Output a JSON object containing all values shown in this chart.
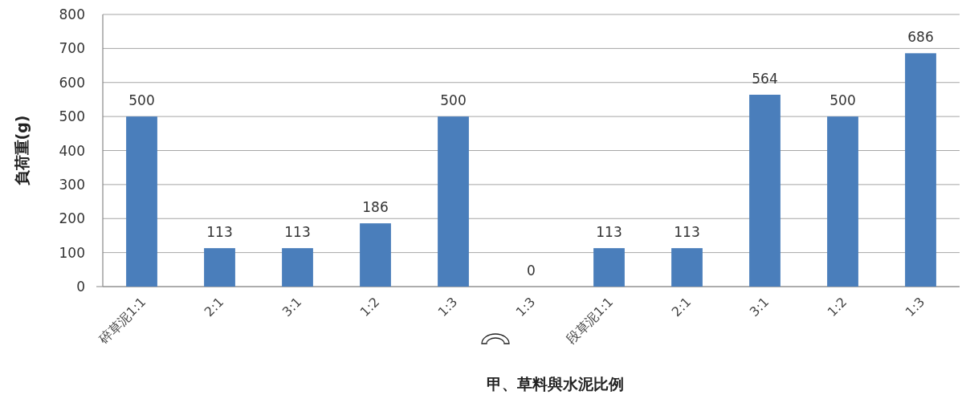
{
  "chart_data": {
    "type": "bar",
    "xlabel": "甲、草料與水泥比例",
    "ylabel": "負荷重(g)",
    "categories": [
      "碎草泥1:1",
      "2:1",
      "3:1",
      "1:2",
      "1:3",
      "1:3",
      "段草泥1:1",
      "2:1",
      "3:1",
      "1:2",
      "1:3"
    ],
    "values": [
      500,
      113,
      113,
      186,
      500,
      0,
      113,
      113,
      564,
      500,
      686
    ],
    "color": "#4a7ebb",
    "ylim": [
      0,
      800
    ],
    "yticks": [
      0,
      100,
      200,
      300,
      400,
      500,
      600,
      700,
      800
    ],
    "grid": "y",
    "data_labels": true
  }
}
